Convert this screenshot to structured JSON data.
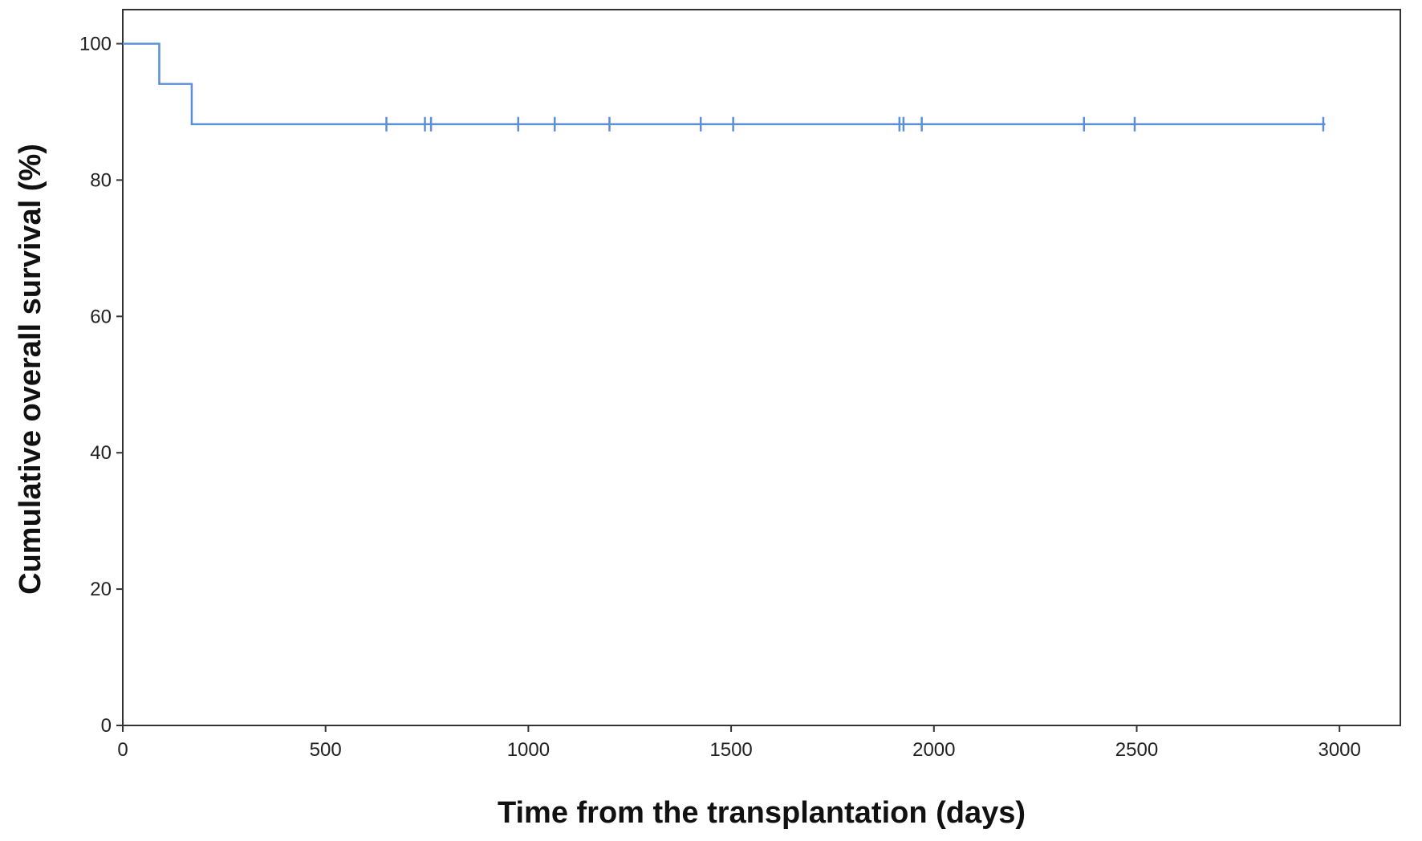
{
  "chart_data": {
    "type": "line",
    "title": "",
    "xlabel": "Time from the transplantation (days)",
    "ylabel": "Cumulative overall survival (%)",
    "xlim": [
      0,
      3150
    ],
    "ylim": [
      0,
      105
    ],
    "xticks": [
      0,
      500,
      1000,
      1500,
      2000,
      2500,
      3000
    ],
    "yticks": [
      0,
      20,
      40,
      60,
      80,
      100
    ],
    "grid": false,
    "legend": "none",
    "series": [
      {
        "color": "#5b8fd6",
        "step": "post",
        "x": [
          0,
          90,
          170,
          2965
        ],
        "y": [
          100,
          94.1,
          88.2,
          88.2
        ],
        "censored_x": [
          650,
          745,
          760,
          975,
          1065,
          1200,
          1425,
          1505,
          1915,
          1925,
          1970,
          2370,
          2495,
          2960
        ]
      }
    ]
  }
}
